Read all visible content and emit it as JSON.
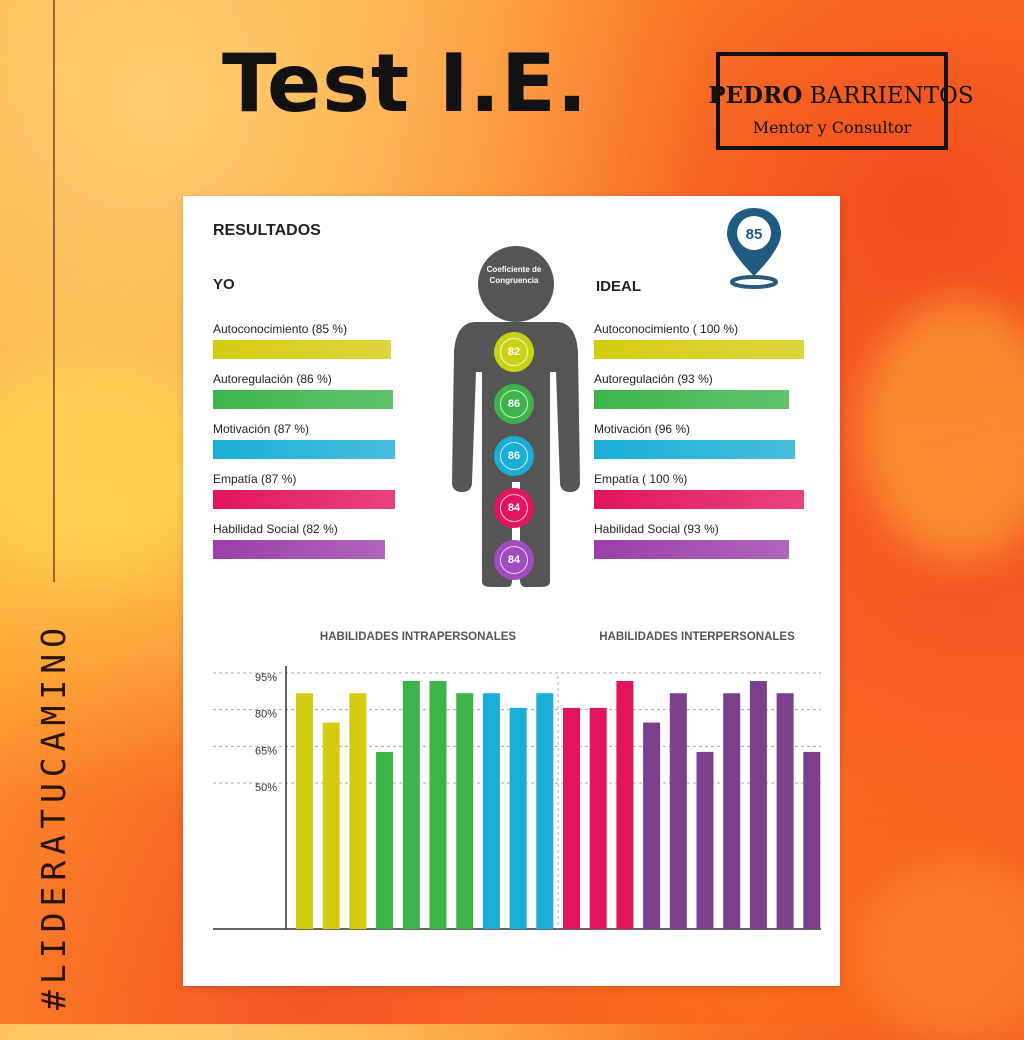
{
  "title": "Test I.E.",
  "brand": {
    "name_first": "PEDRO",
    "name_last": "BARRIENTOS",
    "subtitle": "Mentor y Consultor"
  },
  "hashtag": "#LIDERATUCAMINO",
  "card": {
    "heading": "RESULTADOS",
    "score_pin": "85",
    "yo_heading": "YO",
    "ideal_heading": "IDEAL",
    "silhouette_title": "Coeficiente de Congruencia",
    "silhouette_scores": [
      "82",
      "86",
      "86",
      "84",
      "84"
    ],
    "yo": [
      {
        "label": "Autoconocimiento (85 %)",
        "value": 85,
        "color": "#d4cc10"
      },
      {
        "label": "Autoregulación (86 %)",
        "value": 86,
        "color": "#3cb44a"
      },
      {
        "label": "Motivación (87 %)",
        "value": 87,
        "color": "#1aaed6"
      },
      {
        "label": "Empatía (87 %)",
        "value": 87,
        "color": "#e3145e"
      },
      {
        "label": "Habilidad Social (82 %)",
        "value": 82,
        "color": "#9a3fa8"
      }
    ],
    "ideal": [
      {
        "label": "Autoconocimiento ( 100 %)",
        "value": 100,
        "color": "#d4cc10"
      },
      {
        "label": "Autoregulación (93 %)",
        "value": 93,
        "color": "#3cb44a"
      },
      {
        "label": "Motivación (96 %)",
        "value": 96,
        "color": "#1aaed6"
      },
      {
        "label": "Empatía ( 100 %)",
        "value": 100,
        "color": "#e3145e"
      },
      {
        "label": "Habilidad Social (93 %)",
        "value": 93,
        "color": "#9a3fa8"
      }
    ]
  },
  "chart_data": {
    "type": "bar",
    "group_titles": [
      "HABILIDADES INTRAPERSONALES",
      "HABILIDADES INTERPERSONALES"
    ],
    "y_ticks": [
      "95%",
      "80%",
      "65%",
      "50%"
    ],
    "y_tick_values": [
      95,
      80,
      65,
      50
    ],
    "ylim": [
      0,
      100
    ],
    "values": [
      90,
      78,
      90,
      66,
      95,
      95,
      90,
      90,
      84,
      90,
      84,
      84,
      95,
      78,
      90,
      66,
      90,
      95,
      90,
      66
    ],
    "colors": [
      "#d4cc10",
      "#d4cc10",
      "#d4cc10",
      "#3cb44a",
      "#3cb44a",
      "#3cb44a",
      "#3cb44a",
      "#1aaed6",
      "#1aaed6",
      "#1aaed6",
      "#e3145e",
      "#e3145e",
      "#e3145e",
      "#7b3f8c",
      "#7b3f8c",
      "#7b3f8c",
      "#7b3f8c",
      "#7b3f8c",
      "#7b3f8c",
      "#7b3f8c"
    ],
    "group_split_after": 10
  }
}
